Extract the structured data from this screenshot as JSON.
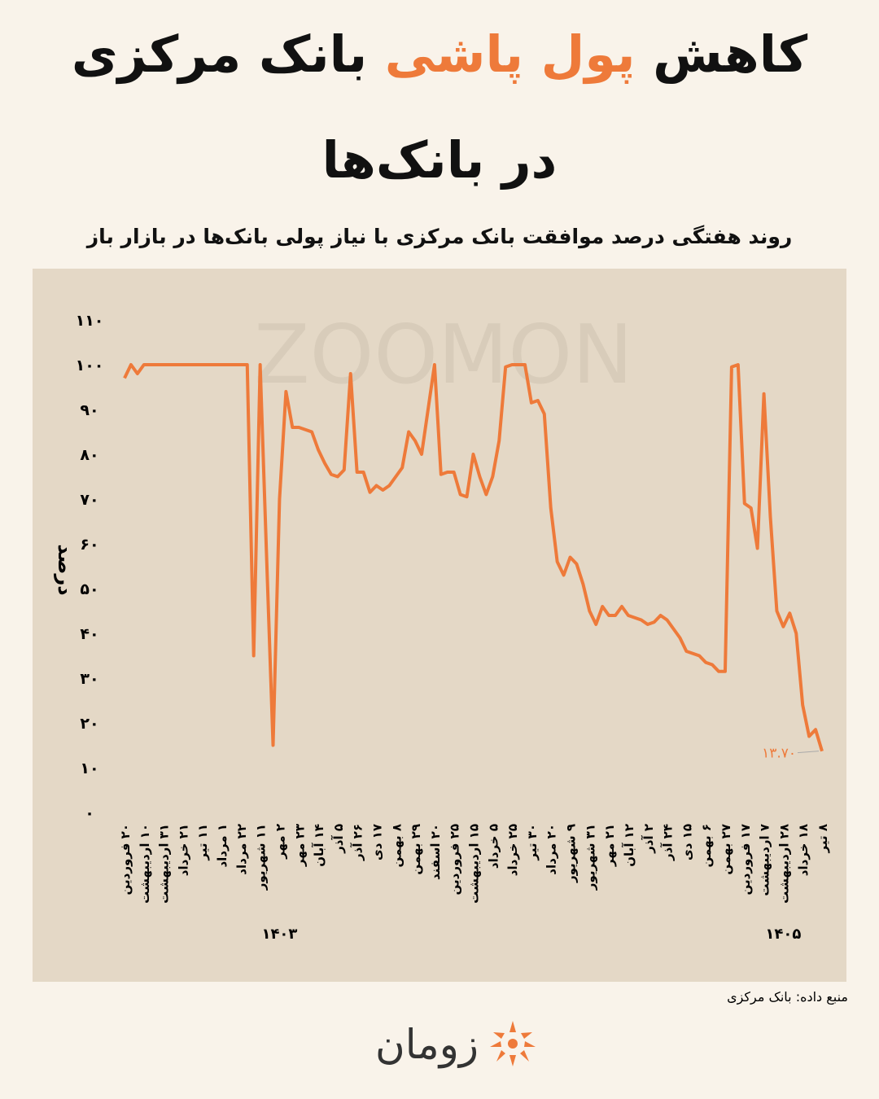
{
  "header": {
    "title_parts": [
      "کاهش",
      "پول پاشی",
      "بانک مرکزی"
    ],
    "title_line2": "در بانک‌ها",
    "subtitle": "روند هفتگی درصد موافقت بانک مرکزی با نیاز پولی بانک‌ها در بازار باز"
  },
  "chart_data": {
    "type": "line",
    "watermark": "ZOOMON",
    "y_label": "درصد",
    "color": "#ee7a3a",
    "grid": false,
    "ylim": [
      0,
      110
    ],
    "yticks": [
      {
        "value": 0,
        "label": "۰"
      },
      {
        "value": 10,
        "label": "۱۰"
      },
      {
        "value": 20,
        "label": "۲۰"
      },
      {
        "value": 30,
        "label": "۳۰"
      },
      {
        "value": 40,
        "label": "۴۰"
      },
      {
        "value": 50,
        "label": "۵۰"
      },
      {
        "value": 60,
        "label": "۶۰"
      },
      {
        "value": 70,
        "label": "۷۰"
      },
      {
        "value": 80,
        "label": "۸۰"
      },
      {
        "value": 90,
        "label": "۹۰"
      },
      {
        "value": 100,
        "label": "۱۰۰"
      },
      {
        "value": 110,
        "label": "۱۱۰"
      }
    ],
    "categories": [
      "۲۰ فروردین",
      null,
      null,
      "۱۰ اردیبهشت",
      null,
      null,
      "۳۱ اردیبهشت",
      null,
      null,
      "۲۱ خرداد",
      null,
      null,
      "۱۱ تیر",
      null,
      null,
      "۱ مرداد",
      null,
      null,
      "۲۲ مرداد",
      null,
      null,
      "۱۱ شهریور",
      null,
      null,
      "۲ مهر",
      null,
      null,
      "۲۳ مهر",
      null,
      null,
      "۱۴ آبان",
      null,
      null,
      "۵ آذر",
      null,
      null,
      "۲۶ آذر",
      null,
      null,
      "۱۷ دی",
      null,
      null,
      "۸ بهمن",
      null,
      null,
      "۲۹ بهمن",
      null,
      null,
      "۲۰ اسفند",
      null,
      null,
      "۲۵ فروردین",
      null,
      null,
      "۱۵ اردیبهشت",
      null,
      null,
      "۵ خرداد",
      null,
      null,
      "۲۵ خرداد",
      null,
      null,
      "۳۰ تیر",
      null,
      null,
      "۲۰ مرداد",
      null,
      null,
      "۹ شهریور",
      null,
      null,
      "۳۱ شهریور",
      null,
      null,
      "۲۱ مهر",
      null,
      null,
      "۱۲ آبان",
      null,
      null,
      "۲ آذر",
      null,
      null,
      "۲۴ آذر",
      null,
      null,
      "۱۵ دی",
      null,
      null,
      "۶ بهمن",
      null,
      null,
      "۲۷ بهمن",
      null,
      null,
      "۱۷ فروردین",
      null,
      null,
      "۷ اردیبهشت",
      null,
      null,
      "۲۸ اردیبهشت",
      null,
      null,
      "۱۸ خرداد",
      null,
      null,
      "۸ تیر"
    ],
    "year_labels": [
      {
        "text": "۱۴۰۳",
        "at": 24
      },
      {
        "text": "۱۴۰۵",
        "at": 102
      }
    ],
    "series": [
      {
        "name": "درصد موافقت",
        "color": "#ee7a3a",
        "values": [
          97,
          100,
          98,
          100,
          100,
          100,
          100,
          100,
          100,
          100,
          100,
          100,
          100,
          100,
          100,
          100,
          100,
          100,
          100,
          100,
          35,
          100,
          57,
          15,
          70,
          94,
          86,
          86,
          85.5,
          85,
          81,
          78,
          75.5,
          75,
          76.5,
          98,
          76,
          76,
          71.5,
          73,
          72,
          73,
          75,
          77,
          85,
          83,
          80,
          90,
          100,
          75.5,
          76,
          76,
          71,
          70.5,
          80,
          75,
          71,
          75,
          83,
          99.5,
          100,
          100,
          100,
          91.5,
          92,
          89,
          68,
          56,
          53,
          57,
          55.5,
          51,
          45,
          42,
          46,
          44,
          44,
          46,
          44,
          43.5,
          43,
          42,
          42.5,
          44,
          43,
          41,
          39,
          36,
          35.5,
          35,
          33.5,
          33,
          31.5,
          31.5,
          99.5,
          100,
          69,
          68,
          59,
          93.5,
          66,
          45,
          41.5,
          44.5,
          40,
          24,
          17,
          18.5,
          13.7
        ],
        "value_labels": [
          null,
          null,
          null,
          null,
          null,
          null,
          null,
          null,
          null,
          null,
          null,
          null,
          null,
          null,
          null,
          null,
          null,
          null,
          null,
          null,
          null,
          null,
          null,
          null,
          null,
          null,
          null,
          null,
          null,
          null,
          null,
          null,
          null,
          null,
          null,
          null,
          null,
          null,
          null,
          null,
          null,
          null,
          null,
          null,
          null,
          null,
          null,
          null,
          null,
          null,
          null,
          null,
          null,
          null,
          null,
          null,
          null,
          null,
          null,
          null,
          null,
          null,
          null,
          null,
          null,
          null,
          null,
          null,
          null,
          null,
          null,
          null,
          null,
          null,
          null,
          null,
          null,
          null,
          null,
          null,
          null,
          null,
          null,
          null,
          null,
          null,
          null,
          null,
          null,
          null,
          null,
          null,
          null,
          null,
          null,
          null,
          null,
          null,
          null,
          null,
          null,
          null,
          null,
          null,
          null,
          null,
          null,
          null,
          "۱۳.۷۰"
        ]
      }
    ]
  },
  "footer": {
    "source": "منبع داده: بانک مرکزی",
    "brand": "زومان"
  }
}
